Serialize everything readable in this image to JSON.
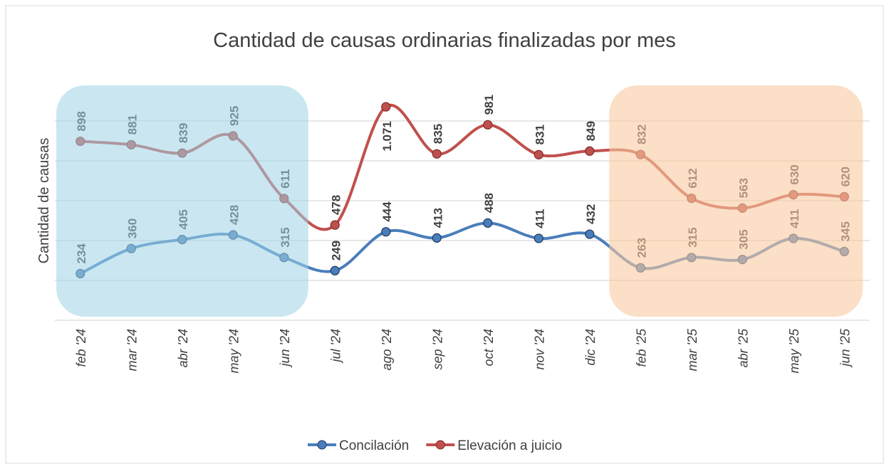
{
  "chart_data": {
    "type": "line",
    "title": "Cantidad de causas ordinarias finalizadas por mes",
    "y_label": "Cantidad de causas",
    "categories": [
      "feb '24",
      "mar '24",
      "abr '24",
      "may '24",
      "jun '24",
      "jul '24",
      "ago '24",
      "sep '24",
      "oct '24",
      "nov '24",
      "dic '24",
      "feb '25",
      "mar '25",
      "abr '25",
      "may '25",
      "jun '25"
    ],
    "series": [
      {
        "name": "Concilación",
        "color": "#4a7ebb",
        "values": [
          234,
          360,
          405,
          428,
          315,
          249,
          444,
          413,
          488,
          411,
          432,
          263,
          315,
          305,
          411,
          345
        ],
        "value_labels": [
          "234",
          "360",
          "405",
          "428",
          "315",
          "249",
          "444",
          "413",
          "488",
          "411",
          "432",
          "263",
          "315",
          "305",
          "411",
          "345"
        ]
      },
      {
        "name": "Elevación a juicio",
        "color": "#c0504d",
        "values": [
          898,
          881,
          839,
          925,
          611,
          478,
          1071,
          835,
          981,
          831,
          849,
          832,
          612,
          563,
          630,
          620
        ],
        "value_labels": [
          "898",
          "881",
          "839",
          "925",
          "611",
          "478",
          "1.071",
          "835",
          "981",
          "831",
          "849",
          "832",
          "612",
          "563",
          "630",
          "620"
        ]
      }
    ],
    "ylim": [
      0,
      1200
    ],
    "yticks": [
      0,
      200,
      400,
      600,
      800,
      1000
    ],
    "grid": true
  }
}
